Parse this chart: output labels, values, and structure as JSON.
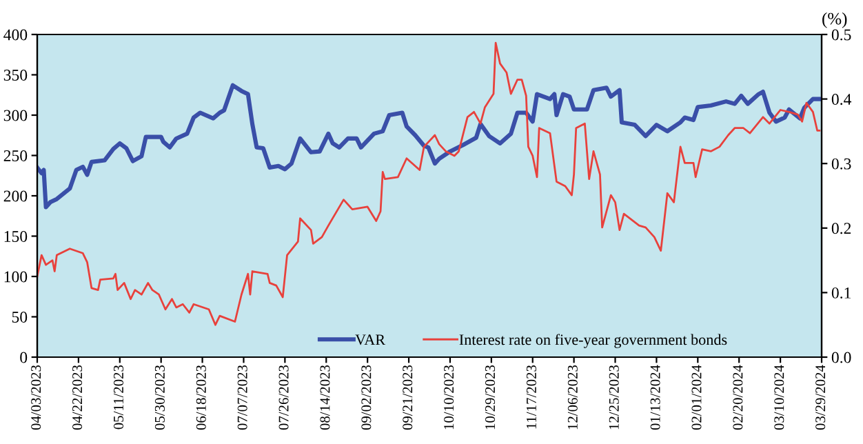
{
  "chart_data": {
    "type": "line",
    "y2label": "(%)",
    "xlim": [
      "2023-04-03",
      "2024-03-29"
    ],
    "xticks": [
      {
        "value": "2023-04-03",
        "label": "04/03/2023"
      },
      {
        "value": "2023-04-22",
        "label": "04/22/2023"
      },
      {
        "value": "2023-05-11",
        "label": "05/11/2023"
      },
      {
        "value": "2023-05-30",
        "label": "05/30/2023"
      },
      {
        "value": "2023-06-18",
        "label": "06/18/2023"
      },
      {
        "value": "2023-07-07",
        "label": "07/07/2023"
      },
      {
        "value": "2023-07-26",
        "label": "07/26/2023"
      },
      {
        "value": "2023-08-14",
        "label": "08/14/2023"
      },
      {
        "value": "2023-09-02",
        "label": "09/02/2023"
      },
      {
        "value": "2023-09-21",
        "label": "09/21/2023"
      },
      {
        "value": "2023-10-10",
        "label": "10/10/2023"
      },
      {
        "value": "2023-10-29",
        "label": "10/29/2023"
      },
      {
        "value": "2023-11-17",
        "label": "11/17/2023"
      },
      {
        "value": "2023-12-06",
        "label": "12/06/2023"
      },
      {
        "value": "2023-12-25",
        "label": "12/25/2023"
      },
      {
        "value": "2024-01-13",
        "label": "01/13/2024"
      },
      {
        "value": "2024-02-01",
        "label": "02/01/2024"
      },
      {
        "value": "2024-02-20",
        "label": "02/20/2024"
      },
      {
        "value": "2024-03-10",
        "label": "03/10/2024"
      },
      {
        "value": "2024-03-29",
        "label": "03/29/2024"
      }
    ],
    "ylim": [
      0,
      400
    ],
    "yticks": [
      0,
      50,
      100,
      150,
      200,
      250,
      300,
      350,
      400
    ],
    "y2lim": [
      0,
      0.5
    ],
    "y2ticks": [
      {
        "value": 0,
        "label": "0.0"
      },
      0.1,
      0.2,
      0.3,
      0.4,
      0.5
    ],
    "grid": false,
    "legend": "bottom",
    "marker": "none",
    "line_style": "solid",
    "series": [
      {
        "name": "VAR",
        "color": "#3a4fa8",
        "x": [
          "2023-04-03",
          "2023-04-05",
          "2023-04-06",
          "2023-04-07",
          "2023-04-09",
          "2023-04-12",
          "2023-04-18",
          "2023-04-21",
          "2023-04-24",
          "2023-04-26",
          "2023-04-28",
          "2023-05-04",
          "2023-05-08",
          "2023-05-11",
          "2023-05-14",
          "2023-05-17",
          "2023-05-21",
          "2023-05-23",
          "2023-05-30",
          "2023-05-31",
          "2023-06-03",
          "2023-06-06",
          "2023-06-11",
          "2023-06-14",
          "2023-06-17",
          "2023-06-23",
          "2023-06-26",
          "2023-06-28",
          "2023-07-02",
          "2023-07-06",
          "2023-07-09",
          "2023-07-11",
          "2023-07-13",
          "2023-07-16",
          "2023-07-19",
          "2023-07-23",
          "2023-07-26",
          "2023-07-29",
          "2023-08-02",
          "2023-08-07",
          "2023-08-11",
          "2023-08-15",
          "2023-08-17",
          "2023-08-20",
          "2023-08-24",
          "2023-08-28",
          "2023-08-30",
          "2023-09-05",
          "2023-09-09",
          "2023-09-12",
          "2023-09-18",
          "2023-09-20",
          "2023-09-24",
          "2023-09-28",
          "2023-09-30",
          "2023-10-03",
          "2023-10-05",
          "2023-10-10",
          "2023-10-16",
          "2023-10-22",
          "2023-10-24",
          "2023-10-28",
          "2023-11-02",
          "2023-11-07",
          "2023-11-10",
          "2023-11-14",
          "2023-11-17",
          "2023-11-19",
          "2023-11-25",
          "2023-11-27",
          "2023-11-28",
          "2023-12-01",
          "2023-12-04",
          "2023-12-06",
          "2023-12-12",
          "2023-12-15",
          "2023-12-21",
          "2023-12-23",
          "2023-12-27",
          "2023-12-28",
          "2024-01-03",
          "2024-01-08",
          "2024-01-13",
          "2024-01-18",
          "2024-01-24",
          "2024-01-26",
          "2024-01-30",
          "2024-02-01",
          "2024-02-07",
          "2024-02-14",
          "2024-02-18",
          "2024-02-21",
          "2024-02-24",
          "2024-02-29",
          "2024-03-02",
          "2024-03-05",
          "2024-03-08",
          "2024-03-12",
          "2024-03-14",
          "2024-03-19",
          "2024-03-21",
          "2024-03-25",
          "2024-03-28"
        ],
        "values": [
          235,
          228,
          232,
          186,
          192,
          196,
          209,
          232,
          236,
          226,
          242,
          244,
          258,
          265,
          259,
          243,
          249,
          273,
          273,
          267,
          260,
          271,
          277,
          297,
          303,
          296,
          303,
          306,
          337,
          330,
          326,
          289,
          260,
          259,
          235,
          237,
          233,
          240,
          271,
          254,
          255,
          277,
          265,
          260,
          271,
          271,
          260,
          277,
          280,
          300,
          303,
          286,
          275,
          262,
          260,
          240,
          246,
          255,
          263,
          272,
          289,
          274,
          265,
          277,
          303,
          303,
          292,
          326,
          320,
          326,
          300,
          326,
          323,
          307,
          307,
          331,
          334,
          323,
          331,
          291,
          288,
          274,
          288,
          280,
          291,
          297,
          294,
          310,
          312,
          317,
          314,
          324,
          314,
          326,
          329,
          303,
          292,
          297,
          307,
          296,
          309,
          320,
          320
        ]
      },
      {
        "name": "Interest rate on five-year government bonds",
        "color": "#e8413c",
        "axis": "y2",
        "x": [
          "2023-04-03",
          "2023-04-05",
          "2023-04-07",
          "2023-04-10",
          "2023-04-11",
          "2023-04-12",
          "2023-04-18",
          "2023-04-24",
          "2023-04-26",
          "2023-04-28",
          "2023-05-01",
          "2023-05-02",
          "2023-05-08",
          "2023-05-09",
          "2023-05-10",
          "2023-05-13",
          "2023-05-16",
          "2023-05-18",
          "2023-05-21",
          "2023-05-24",
          "2023-05-26",
          "2023-05-29",
          "2023-06-01",
          "2023-06-04",
          "2023-06-06",
          "2023-06-09",
          "2023-06-12",
          "2023-06-14",
          "2023-06-21",
          "2023-06-24",
          "2023-06-26",
          "2023-07-03",
          "2023-07-06",
          "2023-07-09",
          "2023-07-10",
          "2023-07-11",
          "2023-07-18",
          "2023-07-19",
          "2023-07-22",
          "2023-07-25",
          "2023-07-27",
          "2023-08-01",
          "2023-08-02",
          "2023-08-07",
          "2023-08-08",
          "2023-08-12",
          "2023-08-15",
          "2023-08-22",
          "2023-08-26",
          "2023-09-02",
          "2023-09-06",
          "2023-09-08",
          "2023-09-09",
          "2023-09-10",
          "2023-09-16",
          "2023-09-20",
          "2023-09-26",
          "2023-09-28",
          "2023-10-03",
          "2023-10-05",
          "2023-10-08",
          "2023-10-12",
          "2023-10-14",
          "2023-10-18",
          "2023-10-21",
          "2023-10-24",
          "2023-10-26",
          "2023-10-30",
          "2023-10-31",
          "2023-11-02",
          "2023-11-05",
          "2023-11-07",
          "2023-11-10",
          "2023-11-12",
          "2023-11-14",
          "2023-11-15",
          "2023-11-17",
          "2023-11-19",
          "2023-11-20",
          "2023-11-25",
          "2023-11-28",
          "2023-12-02",
          "2023-12-05",
          "2023-12-06",
          "2023-12-07",
          "2023-12-11",
          "2023-12-13",
          "2023-12-15",
          "2023-12-18",
          "2023-12-19",
          "2023-12-23",
          "2023-12-25",
          "2023-12-27",
          "2023-12-29",
          "2024-01-05",
          "2024-01-08",
          "2024-01-12",
          "2024-01-15",
          "2024-01-18",
          "2024-01-21",
          "2024-01-24",
          "2024-01-26",
          "2024-01-30",
          "2024-01-31",
          "2024-02-03",
          "2024-02-07",
          "2024-02-11",
          "2024-02-15",
          "2024-02-18",
          "2024-02-22",
          "2024-02-25",
          "2024-03-02",
          "2024-03-05",
          "2024-03-10",
          "2024-03-14",
          "2024-03-18",
          "2024-03-20",
          "2024-03-22",
          "2024-03-25",
          "2024-03-27",
          "2024-03-28"
        ],
        "values": [
          0.125,
          0.158,
          0.143,
          0.15,
          0.133,
          0.158,
          0.168,
          0.161,
          0.147,
          0.107,
          0.104,
          0.12,
          0.122,
          0.129,
          0.104,
          0.115,
          0.09,
          0.104,
          0.097,
          0.115,
          0.104,
          0.097,
          0.074,
          0.09,
          0.077,
          0.082,
          0.069,
          0.082,
          0.074,
          0.05,
          0.064,
          0.055,
          0.097,
          0.129,
          0.097,
          0.133,
          0.129,
          0.115,
          0.111,
          0.093,
          0.158,
          0.179,
          0.215,
          0.197,
          0.176,
          0.186,
          0.204,
          0.244,
          0.229,
          0.233,
          0.211,
          0.226,
          0.287,
          0.276,
          0.279,
          0.308,
          0.29,
          0.326,
          0.344,
          0.33,
          0.319,
          0.312,
          0.319,
          0.372,
          0.38,
          0.362,
          0.387,
          0.408,
          0.487,
          0.455,
          0.441,
          0.408,
          0.43,
          0.43,
          0.405,
          0.326,
          0.312,
          0.279,
          0.355,
          0.347,
          0.272,
          0.265,
          0.251,
          0.283,
          0.355,
          0.362,
          0.276,
          0.319,
          0.283,
          0.201,
          0.251,
          0.24,
          0.197,
          0.222,
          0.204,
          0.201,
          0.186,
          0.165,
          0.254,
          0.24,
          0.326,
          0.301,
          0.301,
          0.279,
          0.322,
          0.319,
          0.326,
          0.344,
          0.355,
          0.355,
          0.347,
          0.372,
          0.362,
          0.383,
          0.38,
          0.376,
          0.365,
          0.394,
          0.38,
          0.351,
          0.351
        ]
      }
    ]
  }
}
